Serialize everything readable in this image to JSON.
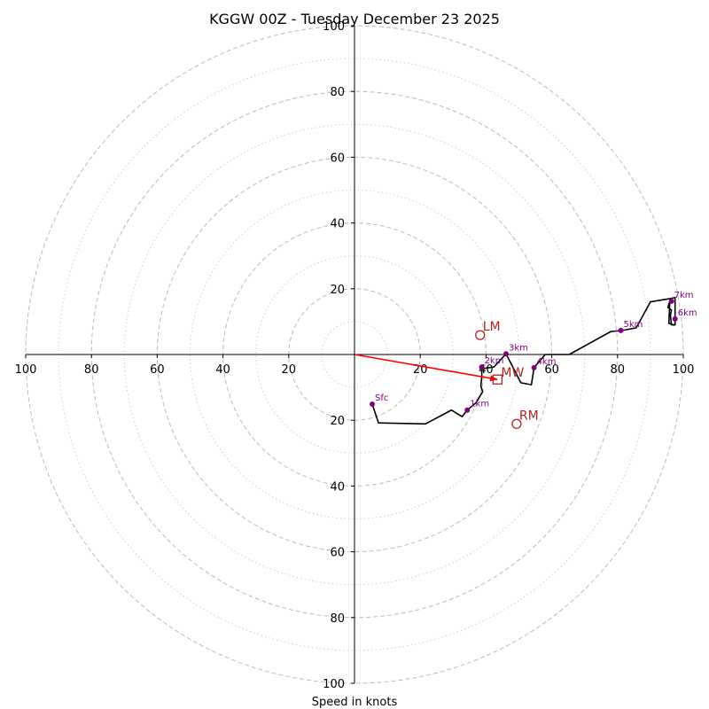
{
  "chart_data": {
    "type": "hodograph",
    "title": "KGGW 00Z - Tuesday December 23 2025",
    "xlabel": "Speed in knots",
    "units": "knots",
    "range": [
      -100,
      100
    ],
    "ring_major": [
      20,
      40,
      60,
      80,
      100
    ],
    "ring_minor": [
      10,
      30,
      50,
      70,
      90
    ],
    "x_tick_labels": [
      {
        "v": -100,
        "label": "100"
      },
      {
        "v": -80,
        "label": "80"
      },
      {
        "v": -60,
        "label": "60"
      },
      {
        "v": -40,
        "label": "40"
      },
      {
        "v": -20,
        "label": "20"
      },
      {
        "v": 20,
        "label": "20"
      },
      {
        "v": 40,
        "label": "40"
      },
      {
        "v": 60,
        "label": "60"
      },
      {
        "v": 80,
        "label": "80"
      },
      {
        "v": 100,
        "label": "100"
      }
    ],
    "y_tick_labels": [
      {
        "v": 100,
        "label": "100"
      },
      {
        "v": 80,
        "label": "80"
      },
      {
        "v": 60,
        "label": "60"
      },
      {
        "v": 40,
        "label": "40"
      },
      {
        "v": 20,
        "label": "20"
      },
      {
        "v": -20,
        "label": "20"
      },
      {
        "v": -40,
        "label": "40"
      },
      {
        "v": -60,
        "label": "60"
      },
      {
        "v": -80,
        "label": "80"
      },
      {
        "v": -100,
        "label": "100"
      }
    ],
    "trace": [
      [
        5.4,
        -15.1
      ],
      [
        7.3,
        -20.8
      ],
      [
        21.6,
        -21.1
      ],
      [
        29.5,
        -16.9
      ],
      [
        32.7,
        -18.9
      ],
      [
        34.3,
        -16.9
      ],
      [
        37.0,
        -14.6
      ],
      [
        39.0,
        -11.3
      ],
      [
        38.4,
        -9.6
      ],
      [
        38.7,
        -7.0
      ],
      [
        38.7,
        -4.3
      ],
      [
        42.4,
        -3.8
      ],
      [
        46.1,
        0.2
      ],
      [
        50.6,
        -8.6
      ],
      [
        53.8,
        -9.2
      ],
      [
        54.6,
        -4.0
      ],
      [
        58.0,
        0.0
      ],
      [
        65.3,
        0.0
      ],
      [
        78.0,
        7.0
      ],
      [
        81.5,
        7.3
      ],
      [
        85.7,
        8.1
      ],
      [
        90.0,
        16.0
      ],
      [
        96.0,
        17.0
      ],
      [
        97.5,
        17.3
      ],
      [
        97.5,
        9.0
      ],
      [
        96.4,
        9.0
      ],
      [
        96.1,
        11.9
      ],
      [
        96.4,
        13.5
      ],
      [
        95.3,
        14.3
      ],
      [
        95.9,
        16.2
      ],
      [
        95.6,
        9.5
      ],
      [
        96.6,
        9.2
      ],
      [
        97.2,
        8.9
      ]
    ],
    "height_markers": [
      {
        "label": "Sfc",
        "u": 5.4,
        "v": -15.1
      },
      {
        "label": "1km",
        "u": 34.3,
        "v": -16.9
      },
      {
        "label": "2km",
        "u": 38.7,
        "v": -3.8
      },
      {
        "label": "3km",
        "u": 46.1,
        "v": 0.2
      },
      {
        "label": "4km",
        "u": 54.6,
        "v": -4.0
      },
      {
        "label": "5km",
        "u": 81.0,
        "v": 7.3
      },
      {
        "label": "6km",
        "u": 97.5,
        "v": 10.8
      },
      {
        "label": "7km",
        "u": 96.4,
        "v": 16.2
      }
    ],
    "storm_motion": {
      "LM": {
        "label": "LM",
        "u": 38.2,
        "v": 5.9
      },
      "RM": {
        "label": "RM",
        "u": 49.3,
        "v": -21.1
      },
      "MW": {
        "label": "MW",
        "u": 43.5,
        "v": -7.6
      }
    },
    "mean_wind_vector": {
      "from": [
        0,
        0
      ],
      "to": [
        43.5,
        -7.6
      ]
    },
    "colors": {
      "trace": "#000000",
      "height_marker": "#800080",
      "storm_motion": "#b22222",
      "vector": "#ff0000",
      "ring": "#bbbbbb",
      "axis": "#000000"
    }
  }
}
